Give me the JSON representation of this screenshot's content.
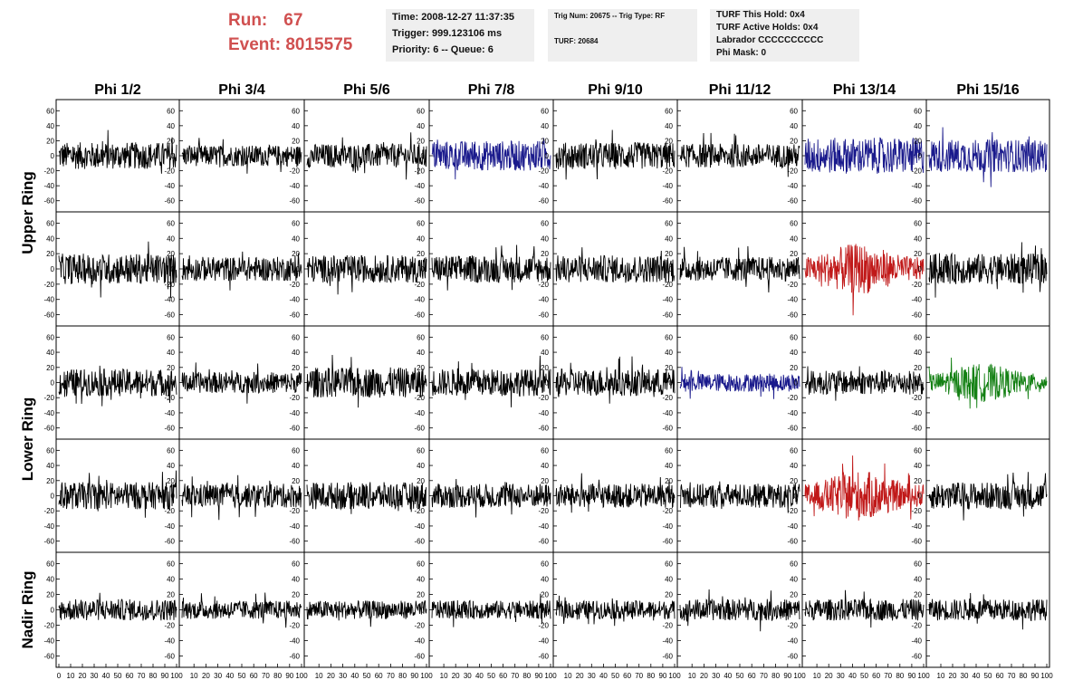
{
  "run": {
    "run_label": "Run:",
    "run_value": "67",
    "event_label": "Event:",
    "event_value": "8015575"
  },
  "info1": {
    "time": "Time: 2008-12-27 11:37:35",
    "trigger": "Trigger: 999.123106 ms",
    "priority": "Priority: 6 -- Queue: 6"
  },
  "info2": {
    "trig": "Trig Num: 20675 -- Trig Type: RF",
    "turf": "TURF: 20684"
  },
  "info3": {
    "hold": "TURF This Hold: 0x4",
    "active": "TURF Active Holds: 0x4",
    "labrador": "Labrador CCCCCCCCCC",
    "phimask": "Phi Mask: 0"
  },
  "columns": [
    "Phi 1/2",
    "Phi 3/4",
    "Phi 5/6",
    "Phi 7/8",
    "Phi 9/10",
    "Phi 11/12",
    "Phi 13/14",
    "Phi 15/16"
  ],
  "ring_labels": [
    "Upper Ring",
    "Lower Ring",
    "Nadir Ring"
  ],
  "y_ticks": [
    "60",
    "40",
    "20",
    "0",
    "-20",
    "-40",
    "-60"
  ],
  "x_ticks": [
    "0",
    "10",
    "20",
    "30",
    "40",
    "50",
    "60",
    "70",
    "80",
    "90",
    "100"
  ],
  "colors": {
    "normal": "#000000",
    "blue": "#1a1a8c",
    "red": "#c01818",
    "green": "#138013",
    "run_text": "#d05050",
    "panel_bg": "#efefef"
  },
  "chart_data": {
    "type": "line",
    "title": "",
    "xlabel": "",
    "ylabel": "",
    "xlim": [
      0,
      100
    ],
    "ylim": [
      -70,
      70
    ],
    "grid": false,
    "layout": "5 rows x 8 columns of waveform panels",
    "trace_colors": [
      [
        "normal",
        "normal",
        "normal",
        "blue",
        "normal",
        "normal",
        "blue",
        "blue"
      ],
      [
        "normal",
        "normal",
        "normal",
        "normal",
        "normal",
        "normal",
        "red",
        "normal"
      ],
      [
        "normal",
        "normal",
        "normal",
        "normal",
        "normal",
        "blue",
        "normal",
        "green"
      ],
      [
        "normal",
        "normal",
        "normal",
        "normal",
        "normal",
        "normal",
        "red",
        "normal"
      ],
      [
        "normal",
        "normal",
        "normal",
        "normal",
        "normal",
        "normal",
        "normal",
        "normal"
      ]
    ],
    "trace_amplitude": [
      [
        18,
        14,
        16,
        20,
        18,
        16,
        24,
        22
      ],
      [
        20,
        16,
        18,
        18,
        18,
        16,
        24,
        20
      ],
      [
        18,
        14,
        20,
        18,
        18,
        12,
        16,
        18
      ],
      [
        18,
        16,
        18,
        16,
        16,
        16,
        24,
        18
      ],
      [
        14,
        12,
        12,
        12,
        12,
        14,
        14,
        14
      ]
    ]
  }
}
